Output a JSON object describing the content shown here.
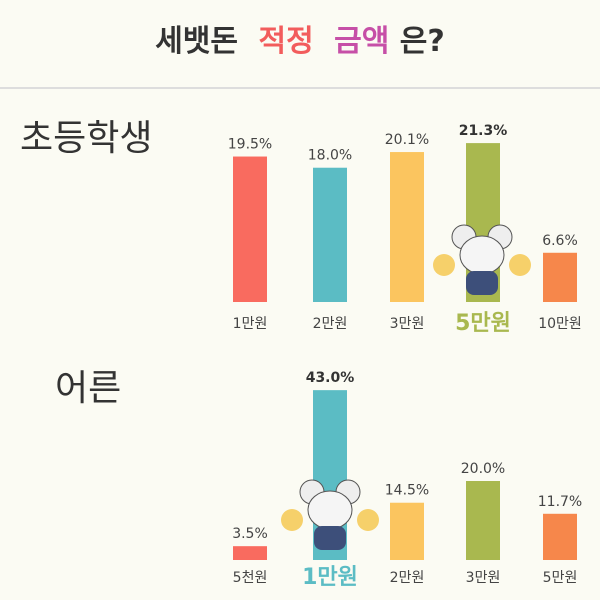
{
  "header": {
    "title_parts": [
      "세뱃돈",
      "적정",
      "금액",
      "은?"
    ]
  },
  "chart_data": [
    {
      "type": "bar",
      "title": "초등학생",
      "categories": [
        "1만원",
        "2만원",
        "3만원",
        "5만원",
        "10만원"
      ],
      "values": [
        19.5,
        18.0,
        20.1,
        21.3,
        6.6
      ],
      "value_labels": [
        "19.5%",
        "18.0%",
        "20.1%",
        "21.3%",
        "6.6%"
      ],
      "colors": [
        "#f96b5f",
        "#5bbcc4",
        "#fbc55f",
        "#a9b84f",
        "#f6874b"
      ],
      "highlight": 3
    },
    {
      "type": "bar",
      "title": "어른",
      "categories": [
        "5천원",
        "1만원",
        "2만원",
        "3만원",
        "5만원"
      ],
      "values": [
        3.5,
        43.0,
        14.5,
        20.0,
        11.7
      ],
      "value_labels": [
        "3.5%",
        "43.0%",
        "14.5%",
        "20.0%",
        "11.7%"
      ],
      "colors": [
        "#f96b5f",
        "#5bbcc4",
        "#fbc55f",
        "#a9b84f",
        "#f6874b"
      ],
      "highlight": 1
    }
  ]
}
